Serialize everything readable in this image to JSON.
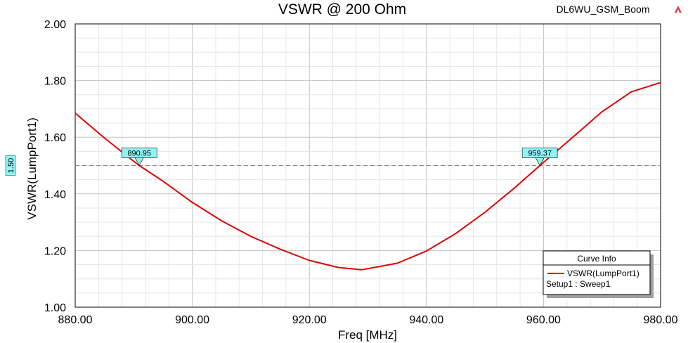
{
  "header": {
    "title": "VSWR @ 200 Ohm",
    "project": "DL6WU_GSM_Boom",
    "logo_icon": "ansys-logo-icon"
  },
  "chart_data": {
    "type": "line",
    "xlabel": "Freq [MHz]",
    "ylabel": "VSWR(LumpPort1)",
    "xlim": [
      880,
      980
    ],
    "ylim": [
      1.0,
      2.0
    ],
    "x_ticks": [
      880,
      900,
      920,
      940,
      960,
      980
    ],
    "y_ticks": [
      1.0,
      1.2,
      1.4,
      1.6,
      1.8,
      2.0
    ],
    "x_tick_labels": [
      "880.00",
      "900.00",
      "920.00",
      "940.00",
      "960.00",
      "980.00"
    ],
    "y_tick_labels": [
      "1.00",
      "1.20",
      "1.40",
      "1.60",
      "1.80",
      "2.00"
    ],
    "grid": true,
    "series": [
      {
        "name": "VSWR(LumpPort1)",
        "color": "#e00000",
        "x": [
          880,
          885,
          890,
          890.95,
          895,
          900,
          905,
          910,
          915,
          920,
          925,
          929,
          935,
          940,
          945,
          950,
          955,
          959.37,
          965,
          970,
          975,
          980
        ],
        "y": [
          1.685,
          1.597,
          1.515,
          1.5,
          1.445,
          1.37,
          1.305,
          1.25,
          1.205,
          1.165,
          1.14,
          1.132,
          1.155,
          1.198,
          1.26,
          1.335,
          1.42,
          1.5,
          1.6,
          1.69,
          1.76,
          1.793
        ]
      }
    ],
    "reference_line": {
      "y": 1.5,
      "label": "1.50",
      "color": "#888888"
    },
    "markers": [
      {
        "x": 890.95,
        "y": 1.5,
        "label": "890.95"
      },
      {
        "x": 959.37,
        "y": 1.5,
        "label": "959.37"
      }
    ],
    "legend": {
      "title": "Curve Info",
      "entry": "VSWR(LumpPort1)",
      "setup": "Setup1 : Sweep1",
      "placement": "bottom-right"
    }
  }
}
